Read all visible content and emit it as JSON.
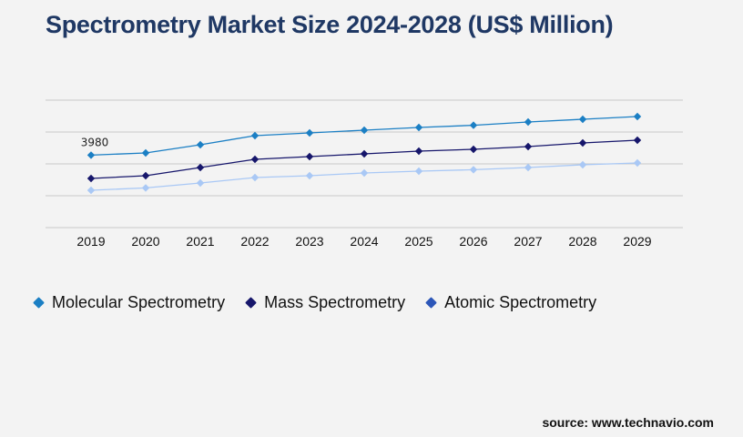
{
  "title": "Spectrometry Market Size 2024-2028 (US$ Million)",
  "source": "source: www.technavio.com",
  "colors": {
    "molecular": "#1b7fc4",
    "mass": "#16166b",
    "atomic": "#a9c8f5",
    "atomic_legend": "#2c56b8",
    "grid": "#c8c8c8",
    "title": "#1f3864"
  },
  "chart_data": {
    "type": "line",
    "title": "Spectrometry Market Size 2024-2028 (US$ Million)",
    "xlabel": "",
    "ylabel": "",
    "x": [
      "2019",
      "2020",
      "2021",
      "2022",
      "2023",
      "2024",
      "2025",
      "2026",
      "2027",
      "2028",
      "2029"
    ],
    "ylim": [
      0,
      10000
    ],
    "grid": true,
    "legend_position": "bottom-left",
    "annotations": [
      {
        "series": 0,
        "x": "2019",
        "text": "3980"
      }
    ],
    "series": [
      {
        "name": "Molecular Spectrometry",
        "values": [
          3980,
          4100,
          4550,
          5050,
          5200,
          5350,
          5500,
          5620,
          5800,
          5950,
          6100
        ]
      },
      {
        "name": "Mass Spectrometry",
        "values": [
          2700,
          2850,
          3300,
          3750,
          3900,
          4050,
          4200,
          4300,
          4450,
          4650,
          4800
        ]
      },
      {
        "name": "Atomic Spectrometry",
        "values": [
          2050,
          2180,
          2450,
          2750,
          2850,
          3000,
          3100,
          3180,
          3300,
          3450,
          3550
        ]
      }
    ]
  },
  "legend": {
    "items": [
      {
        "label": "Molecular Spectrometry",
        "color": "#1b7fc4"
      },
      {
        "label": "Mass Spectrometry",
        "color": "#16166b"
      },
      {
        "label": "Atomic Spectrometry",
        "color": "#2c56b8"
      }
    ]
  }
}
